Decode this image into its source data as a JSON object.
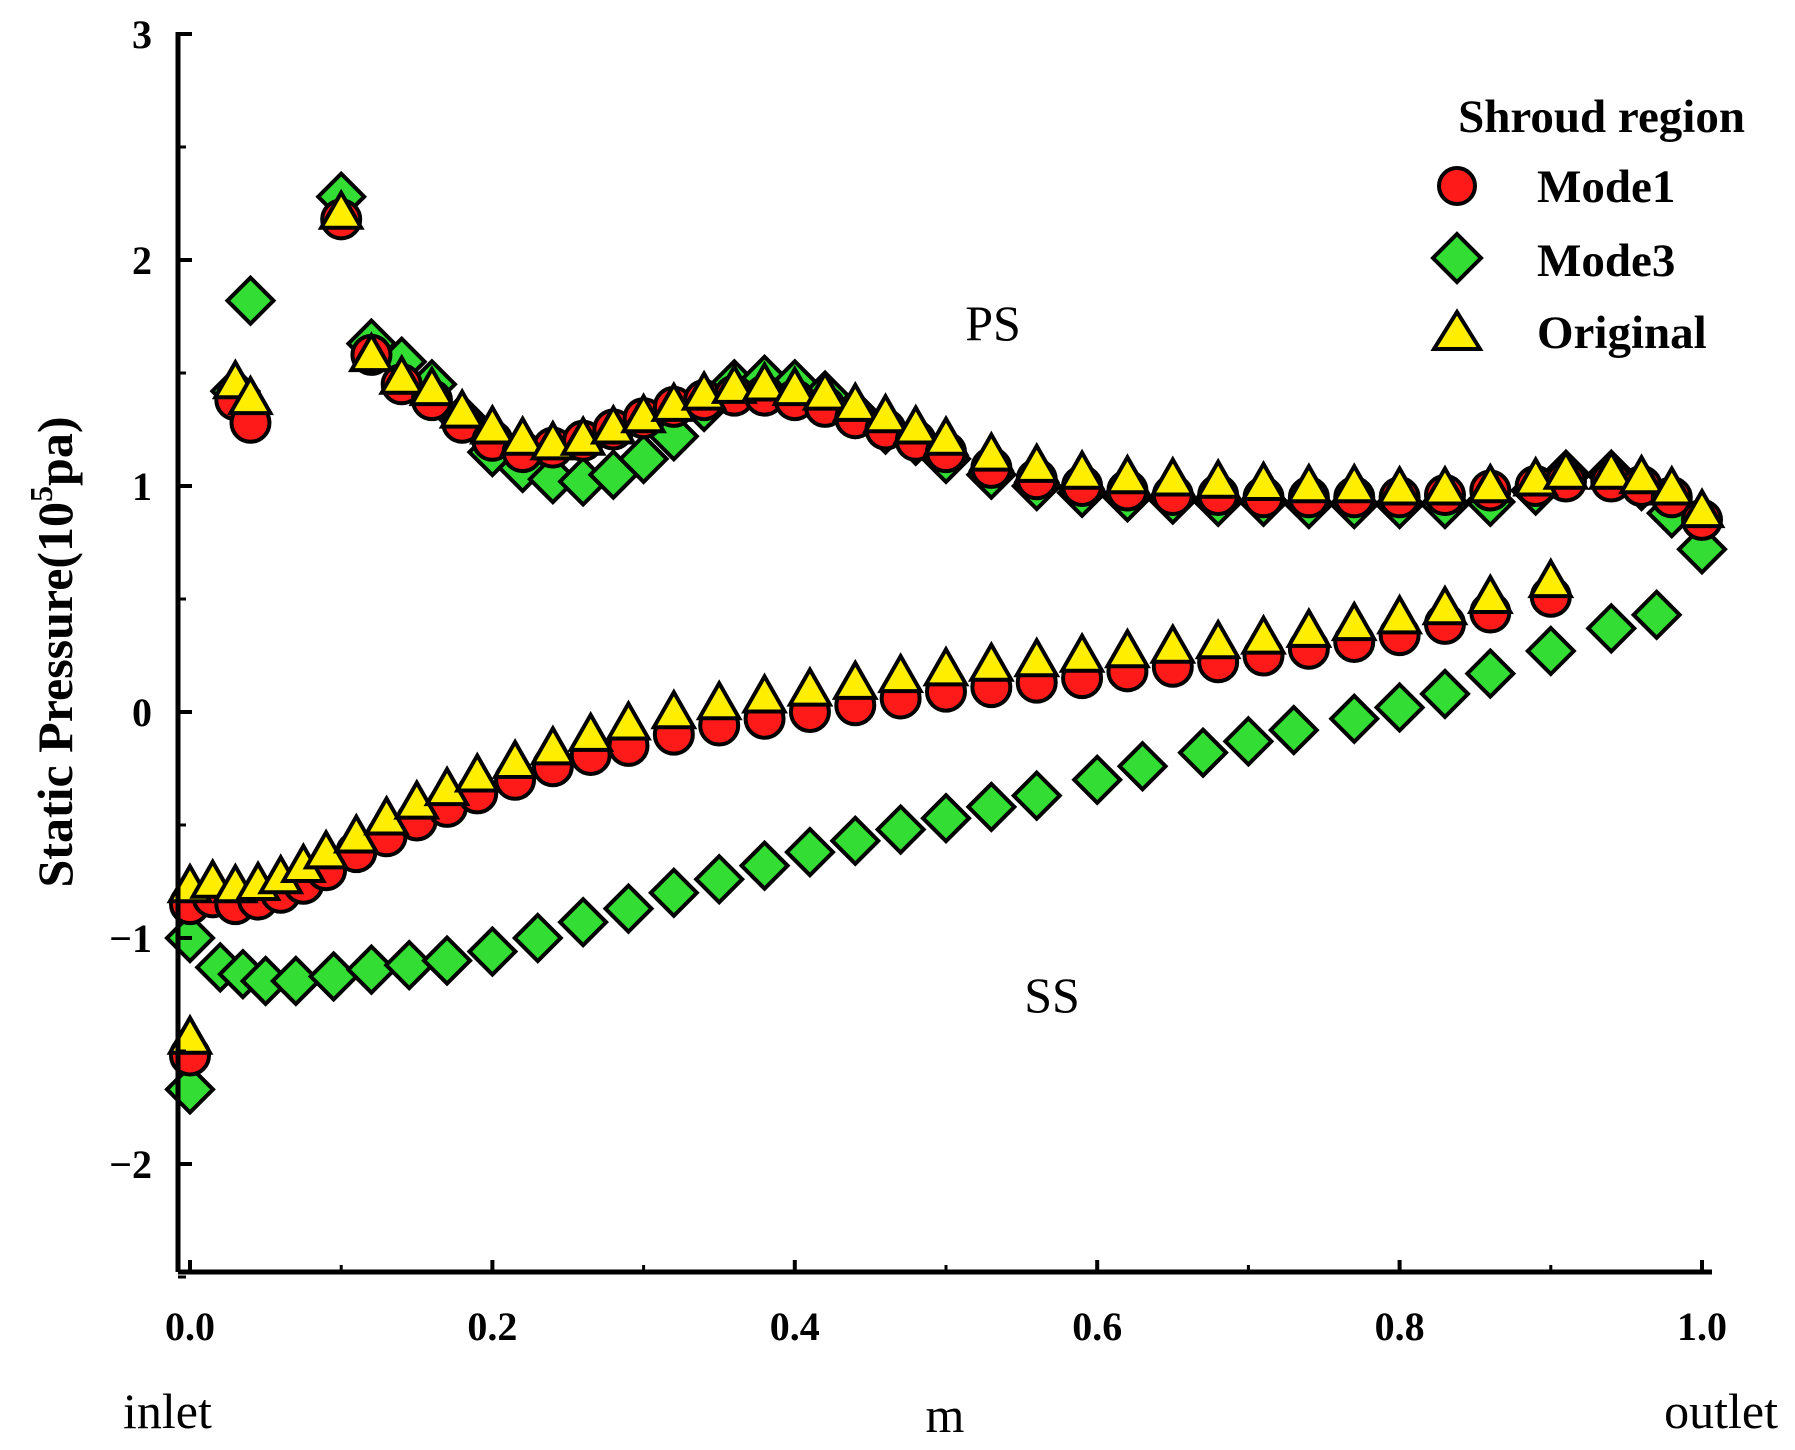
{
  "chart_data": {
    "type": "scatter",
    "title": "",
    "xlabel": "m",
    "ylabel": "Static Pressure(10^5pa)",
    "ylabel_parts": {
      "pre": "Static Pressure(10",
      "sup": "5",
      "post": "pa)"
    },
    "xlim": [
      0,
      1.0
    ],
    "ylim": [
      -2.5,
      3
    ],
    "x_ticks": [
      0.0,
      0.2,
      0.4,
      0.6,
      0.8,
      1.0
    ],
    "x_tick_labels": [
      "0.0",
      "0.2",
      "0.4",
      "0.6",
      "0.8",
      "1.0"
    ],
    "y_ticks": [
      -2,
      -1,
      0,
      1,
      2,
      3
    ],
    "y_tick_labels": [
      "−2",
      "−1",
      "0",
      "1",
      "2",
      "3"
    ],
    "x_end_labels": {
      "left": "inlet",
      "right": "outlet"
    },
    "annotations": [
      {
        "text": "PS",
        "x": 0.535,
        "y": 1.7
      },
      {
        "text": "SS",
        "x": 0.57,
        "y": -1.27
      }
    ],
    "legend": {
      "title": "Shroud region",
      "placement": "top-right",
      "entries": [
        "Mode1",
        "Mode3",
        "Original"
      ]
    },
    "series": [
      {
        "name": "Mode1",
        "marker": "circle",
        "color": "#ff1a1a",
        "ps": {
          "x": [
            0.0,
            0.03,
            0.04,
            0.1,
            0.12,
            0.14,
            0.16,
            0.18,
            0.2,
            0.22,
            0.24,
            0.26,
            0.28,
            0.3,
            0.32,
            0.34,
            0.36,
            0.38,
            0.4,
            0.42,
            0.44,
            0.46,
            0.48,
            0.5,
            0.53,
            0.56,
            0.59,
            0.62,
            0.65,
            0.68,
            0.71,
            0.74,
            0.77,
            0.8,
            0.83,
            0.86,
            0.89,
            0.91,
            0.94,
            0.96,
            0.98,
            1.0
          ],
          "y": [
            -0.85,
            1.38,
            1.28,
            2.18,
            1.58,
            1.45,
            1.38,
            1.28,
            1.2,
            1.15,
            1.17,
            1.2,
            1.25,
            1.3,
            1.35,
            1.38,
            1.4,
            1.4,
            1.38,
            1.35,
            1.3,
            1.25,
            1.2,
            1.15,
            1.08,
            1.03,
            1.0,
            0.98,
            0.96,
            0.96,
            0.95,
            0.95,
            0.95,
            0.95,
            0.96,
            0.98,
            1.0,
            1.02,
            1.02,
            1.0,
            0.95,
            0.85
          ]
        },
        "ss": {
          "x": [
            0.0,
            0.015,
            0.03,
            0.045,
            0.06,
            0.075,
            0.09,
            0.11,
            0.13,
            0.15,
            0.17,
            0.19,
            0.215,
            0.24,
            0.265,
            0.29,
            0.32,
            0.35,
            0.38,
            0.41,
            0.44,
            0.47,
            0.5,
            0.53,
            0.56,
            0.59,
            0.62,
            0.65,
            0.68,
            0.71,
            0.74,
            0.77,
            0.8,
            0.83,
            0.86,
            0.9
          ],
          "y": [
            -1.52,
            -0.82,
            -0.85,
            -0.83,
            -0.8,
            -0.76,
            -0.7,
            -0.62,
            -0.55,
            -0.48,
            -0.42,
            -0.36,
            -0.3,
            -0.24,
            -0.19,
            -0.15,
            -0.1,
            -0.06,
            -0.03,
            0.0,
            0.03,
            0.06,
            0.09,
            0.11,
            0.13,
            0.15,
            0.18,
            0.2,
            0.22,
            0.25,
            0.28,
            0.31,
            0.34,
            0.39,
            0.44,
            0.51
          ]
        }
      },
      {
        "name": "Mode3",
        "marker": "diamond",
        "color": "#33dd33",
        "ps": {
          "x": [
            0.0,
            0.03,
            0.04,
            0.1,
            0.12,
            0.14,
            0.16,
            0.18,
            0.2,
            0.22,
            0.24,
            0.26,
            0.28,
            0.3,
            0.32,
            0.34,
            0.36,
            0.38,
            0.4,
            0.42,
            0.44,
            0.46,
            0.48,
            0.5,
            0.53,
            0.56,
            0.59,
            0.62,
            0.65,
            0.68,
            0.71,
            0.74,
            0.77,
            0.8,
            0.83,
            0.86,
            0.89,
            0.91,
            0.94,
            0.96,
            0.98,
            1.0
          ],
          "y": [
            -1.0,
            1.42,
            1.82,
            2.28,
            1.63,
            1.55,
            1.45,
            1.3,
            1.15,
            1.08,
            1.03,
            1.02,
            1.05,
            1.12,
            1.22,
            1.35,
            1.45,
            1.47,
            1.45,
            1.4,
            1.32,
            1.25,
            1.2,
            1.12,
            1.05,
            1.0,
            0.97,
            0.95,
            0.94,
            0.93,
            0.93,
            0.92,
            0.92,
            0.92,
            0.92,
            0.93,
            0.98,
            1.05,
            1.05,
            1.0,
            0.88,
            0.72
          ]
        },
        "ss": {
          "x": [
            0.0,
            0.02,
            0.035,
            0.05,
            0.07,
            0.095,
            0.12,
            0.145,
            0.17,
            0.2,
            0.23,
            0.26,
            0.29,
            0.32,
            0.35,
            0.38,
            0.41,
            0.44,
            0.47,
            0.5,
            0.53,
            0.56,
            0.6,
            0.63,
            0.67,
            0.7,
            0.73,
            0.77,
            0.8,
            0.83,
            0.86,
            0.9,
            0.94,
            0.97
          ],
          "y": [
            -1.67,
            -1.13,
            -1.16,
            -1.19,
            -1.19,
            -1.17,
            -1.14,
            -1.12,
            -1.1,
            -1.06,
            -1.0,
            -0.93,
            -0.87,
            -0.8,
            -0.74,
            -0.68,
            -0.62,
            -0.57,
            -0.52,
            -0.47,
            -0.42,
            -0.37,
            -0.3,
            -0.24,
            -0.18,
            -0.13,
            -0.08,
            -0.03,
            0.02,
            0.08,
            0.17,
            0.27,
            0.37,
            0.43
          ]
        }
      },
      {
        "name": "Original",
        "marker": "triangle",
        "color": "#ffee00",
        "ps": {
          "x": [
            0.0,
            0.03,
            0.04,
            0.1,
            0.12,
            0.14,
            0.16,
            0.18,
            0.2,
            0.22,
            0.24,
            0.26,
            0.28,
            0.3,
            0.32,
            0.34,
            0.36,
            0.38,
            0.4,
            0.42,
            0.44,
            0.46,
            0.48,
            0.5,
            0.53,
            0.56,
            0.59,
            0.62,
            0.65,
            0.68,
            0.71,
            0.74,
            0.77,
            0.8,
            0.83,
            0.86,
            0.89,
            0.91,
            0.94,
            0.96,
            0.98,
            1.0
          ],
          "y": [
            -0.78,
            1.45,
            1.38,
            2.2,
            1.57,
            1.47,
            1.42,
            1.32,
            1.25,
            1.2,
            1.18,
            1.2,
            1.25,
            1.3,
            1.35,
            1.4,
            1.43,
            1.44,
            1.42,
            1.4,
            1.35,
            1.3,
            1.25,
            1.2,
            1.13,
            1.08,
            1.05,
            1.03,
            1.02,
            1.01,
            1.0,
            0.99,
            0.99,
            0.98,
            0.98,
            0.99,
            1.02,
            1.05,
            1.05,
            1.03,
            0.98,
            0.88
          ]
        },
        "ss": {
          "x": [
            0.0,
            0.015,
            0.03,
            0.045,
            0.06,
            0.075,
            0.09,
            0.11,
            0.13,
            0.15,
            0.17,
            0.19,
            0.215,
            0.24,
            0.265,
            0.29,
            0.32,
            0.35,
            0.38,
            0.41,
            0.44,
            0.47,
            0.5,
            0.53,
            0.56,
            0.59,
            0.62,
            0.65,
            0.68,
            0.71,
            0.74,
            0.77,
            0.8,
            0.83,
            0.86,
            0.9
          ],
          "y": [
            -1.45,
            -0.76,
            -0.78,
            -0.77,
            -0.74,
            -0.69,
            -0.63,
            -0.56,
            -0.48,
            -0.41,
            -0.35,
            -0.29,
            -0.23,
            -0.17,
            -0.11,
            -0.06,
            -0.01,
            0.03,
            0.06,
            0.09,
            0.12,
            0.15,
            0.18,
            0.2,
            0.22,
            0.24,
            0.26,
            0.28,
            0.3,
            0.32,
            0.35,
            0.38,
            0.41,
            0.45,
            0.5,
            0.57
          ]
        }
      }
    ]
  }
}
